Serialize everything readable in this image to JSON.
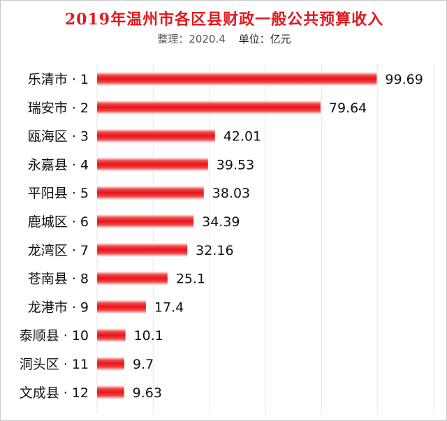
{
  "chart_data": {
    "type": "bar",
    "orientation": "horizontal",
    "title": "2019年温州市各区县财政一般公共预算收入",
    "source_note": "整理：2020.4",
    "unit_label": "单位：亿元",
    "categories": [
      "乐清市 · 1",
      "瑞安市 · 2",
      "瓯海区 · 3",
      "永嘉县 · 4",
      "平阳县 · 5",
      "鹿城区 · 6",
      "龙湾区 · 7",
      "苍南县 · 8",
      "龙港市 · 9",
      "泰顺县 · 10",
      "洞头区 · 11",
      "文成县 · 12"
    ],
    "values": [
      99.69,
      79.64,
      42.01,
      39.53,
      38.03,
      34.39,
      32.16,
      25.1,
      17.4,
      10.1,
      9.7,
      9.63
    ],
    "value_labels": [
      "99.69",
      "79.64",
      "42.01",
      "39.53",
      "38.03",
      "34.39",
      "32.16",
      "25.1",
      "17.4",
      "10.1",
      "9.7",
      "9.63"
    ],
    "xlim": [
      0,
      120
    ],
    "grid": "vertical",
    "bar_color": "#e8141a",
    "legend": "none"
  }
}
